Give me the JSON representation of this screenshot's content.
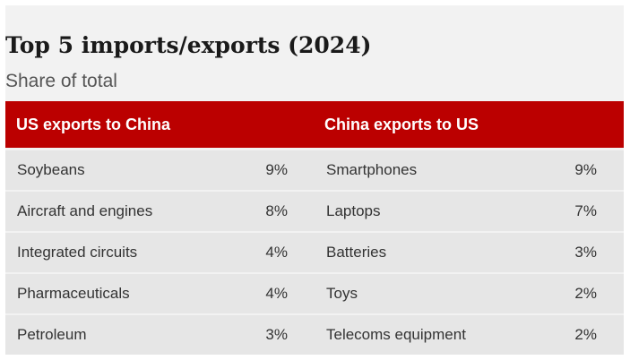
{
  "title": "Top 5 imports/exports (2024)",
  "subtitle": "Share of total",
  "colors": {
    "header_bg": "#bb0000",
    "header_text": "#ffffff",
    "row_bg": "#e6e6e6",
    "card_bg": "#f2f2f2"
  },
  "chart_data": {
    "type": "table",
    "title": "Top 5 imports/exports (2024)",
    "subtitle": "Share of total",
    "columns": [
      "US exports to China",
      "China exports to US"
    ],
    "rows": [
      {
        "us_item": "Soybeans",
        "us_share": "9%",
        "cn_item": "Smartphones",
        "cn_share": "9%"
      },
      {
        "us_item": "Aircraft and engines",
        "us_share": "8%",
        "cn_item": "Laptops",
        "cn_share": "7%"
      },
      {
        "us_item": "Integrated circuits",
        "us_share": "4%",
        "cn_item": "Batteries",
        "cn_share": "3%"
      },
      {
        "us_item": "Pharmaceuticals",
        "us_share": "4%",
        "cn_item": "Toys",
        "cn_share": "2%"
      },
      {
        "us_item": "Petroleum",
        "us_share": "3%",
        "cn_item": "Telecoms equipment",
        "cn_share": "2%"
      }
    ]
  }
}
